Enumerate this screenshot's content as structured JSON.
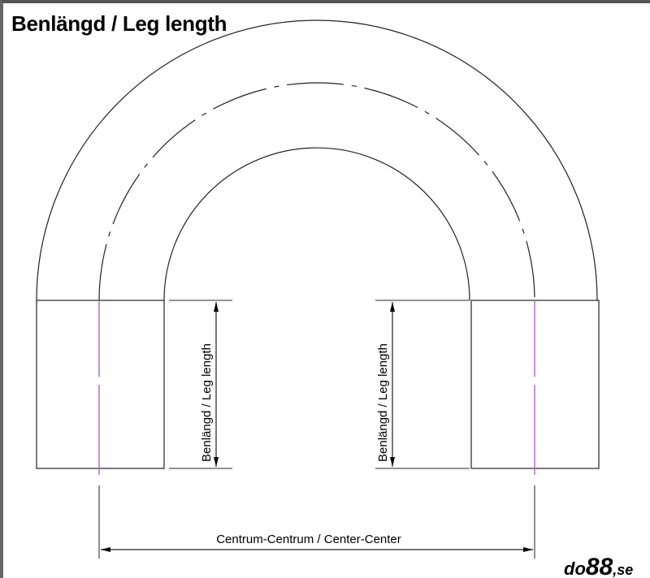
{
  "title": "Benlängd / Leg length",
  "labels": {
    "leg_length_left": "Benlängd / Leg length",
    "leg_length_right": "Benlängd / Leg length",
    "center_center": "Centrum-Centrum / Center-Center"
  },
  "logo": {
    "prefix": "do",
    "number": "88",
    "suffix": ",se"
  },
  "colors": {
    "line": "#000000",
    "centerline": "#b070c8"
  }
}
